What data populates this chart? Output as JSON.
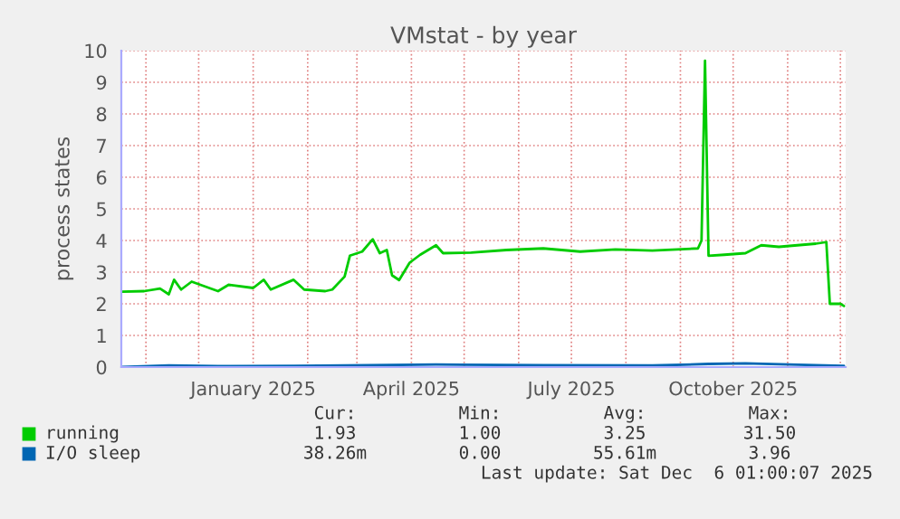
{
  "chart_data": {
    "type": "line",
    "title": "VMstat - by year",
    "ylabel": "process states",
    "xlim": [
      "2024-10-18",
      "2025-12-04"
    ],
    "xticks": [
      {
        "value": "2024-11-01",
        "label": null
      },
      {
        "value": "2024-12-01",
        "label": null
      },
      {
        "value": "2025-01-01",
        "label": "January 2025"
      },
      {
        "value": "2025-02-01",
        "label": null
      },
      {
        "value": "2025-03-01",
        "label": null
      },
      {
        "value": "2025-04-01",
        "label": "April 2025"
      },
      {
        "value": "2025-05-01",
        "label": null
      },
      {
        "value": "2025-06-01",
        "label": null
      },
      {
        "value": "2025-07-01",
        "label": "July 2025"
      },
      {
        "value": "2025-08-01",
        "label": null
      },
      {
        "value": "2025-09-01",
        "label": null
      },
      {
        "value": "2025-10-01",
        "label": "October 2025"
      },
      {
        "value": "2025-11-01",
        "label": null
      },
      {
        "value": "2025-12-01",
        "label": null
      }
    ],
    "ylim": [
      0,
      10
    ],
    "yticks": [
      0,
      1,
      2,
      3,
      4,
      5,
      6,
      7,
      8,
      9,
      10
    ],
    "grid": true,
    "legend": "bottom",
    "series": [
      {
        "name": "running",
        "color": "#00cc00",
        "x": [
          "2024-10-18",
          "2024-10-31",
          "2024-11-09",
          "2024-11-14",
          "2024-11-17",
          "2024-11-21",
          "2024-11-27",
          "2024-12-12",
          "2024-12-18",
          "2025-01-01",
          "2025-01-07",
          "2025-01-11",
          "2025-01-24",
          "2025-01-30",
          "2025-02-11",
          "2025-02-15",
          "2025-02-22",
          "2025-02-25",
          "2025-03-04",
          "2025-03-10",
          "2025-03-14",
          "2025-03-18",
          "2025-03-21",
          "2025-03-25",
          "2025-03-31",
          "2025-04-06",
          "2025-04-15",
          "2025-04-19",
          "2025-05-05",
          "2025-05-25",
          "2025-06-15",
          "2025-07-06",
          "2025-07-26",
          "2025-08-16",
          "2025-09-11",
          "2025-09-13",
          "2025-09-15",
          "2025-09-17",
          "2025-09-26",
          "2025-10-08",
          "2025-10-17",
          "2025-10-27",
          "2025-11-17",
          "2025-11-23",
          "2025-11-25",
          "2025-12-01",
          "2025-12-03"
        ],
        "values": [
          2.38,
          2.4,
          2.48,
          2.3,
          2.76,
          2.45,
          2.7,
          2.4,
          2.6,
          2.5,
          2.76,
          2.45,
          2.76,
          2.45,
          2.4,
          2.45,
          2.86,
          3.52,
          3.65,
          4.04,
          3.6,
          3.7,
          2.9,
          2.75,
          3.3,
          3.55,
          3.85,
          3.6,
          3.62,
          3.7,
          3.75,
          3.65,
          3.72,
          3.68,
          3.75,
          4.0,
          9.68,
          3.52,
          3.55,
          3.6,
          3.85,
          3.8,
          3.9,
          3.95,
          2.0,
          2.0,
          1.93
        ]
      },
      {
        "name": "I/O sleep",
        "color": "#0066b3",
        "x": [
          "2024-10-18",
          "2024-11-14",
          "2024-12-12",
          "2025-01-24",
          "2025-02-22",
          "2025-04-15",
          "2025-06-15",
          "2025-08-16",
          "2025-09-17",
          "2025-10-08",
          "2025-11-17",
          "2025-12-03"
        ],
        "values": [
          0.0,
          0.05,
          0.03,
          0.04,
          0.05,
          0.08,
          0.06,
          0.05,
          0.1,
          0.12,
          0.06,
          0.04
        ]
      }
    ],
    "annotations": [
      "Cur:",
      "Min:",
      "Avg:",
      "Max:",
      "1.93",
      "1.00",
      "3.25",
      "31.50",
      "38.26m",
      "0.00",
      "55.61m",
      "3.96",
      "Last update: Sat Dec  6 01:00:07 2025"
    ]
  }
}
